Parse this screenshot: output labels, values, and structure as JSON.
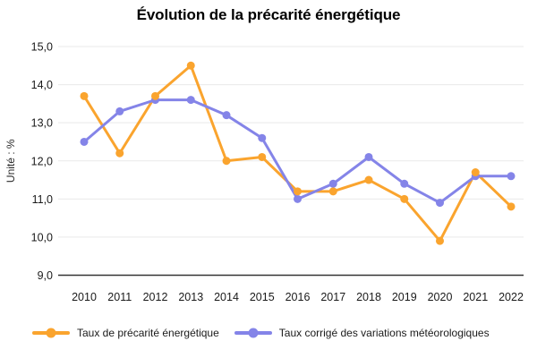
{
  "header": {
    "title": "Évolution de la précarité énergétique"
  },
  "chart_data": {
    "type": "line",
    "title": "Évolution de la précarité énergétique",
    "xlabel": "",
    "ylabel": "Unité : %",
    "categories": [
      "2010",
      "2011",
      "2012",
      "2013",
      "2014",
      "2015",
      "2016",
      "2017",
      "2018",
      "2019",
      "2020",
      "2021",
      "2022"
    ],
    "series": [
      {
        "name": "Taux de précarité énergétique",
        "color": "#FAA42E",
        "values": [
          13.7,
          12.2,
          13.7,
          14.5,
          12.0,
          12.1,
          11.2,
          11.2,
          11.5,
          11.0,
          9.9,
          11.7,
          10.8
        ]
      },
      {
        "name": "Taux corrigé des variations météorologiques",
        "color": "#8484E8",
        "values": [
          12.5,
          13.3,
          13.6,
          13.6,
          13.2,
          12.6,
          11.0,
          11.4,
          12.1,
          11.4,
          10.9,
          11.6,
          11.6
        ]
      }
    ],
    "ylim": [
      9.0,
      15.0
    ],
    "ytick_step": 1,
    "ytick_labels": [
      "9,0",
      "10,0",
      "11,0",
      "12,0",
      "13,0",
      "14,0",
      "15,0"
    ],
    "decimal_separator": ",",
    "grid": true,
    "legend_position": "bottom"
  },
  "colors": {
    "grid": "#e9e9e9",
    "axis": "#343434",
    "tick_text": "#1a1a1a",
    "background": "#ffffff"
  }
}
